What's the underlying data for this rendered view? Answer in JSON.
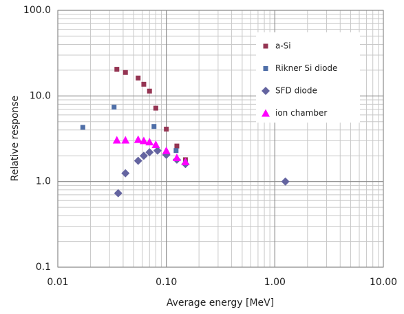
{
  "chart_data": {
    "type": "scatter",
    "xlabel": "Average energy [MeV]",
    "ylabel": "Relative response",
    "xscale": "log",
    "yscale": "log",
    "grid": true,
    "minor_grid": true,
    "legend": "upper right",
    "xlim": [
      0.01,
      10
    ],
    "ylim": [
      0.1,
      100
    ],
    "xticks": [
      0.01,
      {
        "value": 0.1,
        "label": "0.10"
      },
      {
        "value": 1,
        "label": "1.00"
      },
      {
        "value": 10,
        "label": "10.00"
      }
    ],
    "yticks": [
      {
        "value": 100,
        "label": "100.0"
      },
      {
        "value": 10,
        "label": "10.0"
      },
      {
        "value": 1,
        "label": "1.0"
      },
      0.1
    ],
    "series": [
      {
        "name": "a-Si",
        "color": "#953553",
        "marker": "square",
        "x": [
          0.035,
          0.042,
          0.055,
          0.062,
          0.07,
          0.08,
          0.1,
          0.125,
          0.15
        ],
        "values": [
          20.5,
          18.8,
          16.2,
          13.7,
          11.4,
          7.2,
          4.1,
          2.6,
          1.8
        ]
      },
      {
        "name": "Rikner Si diode",
        "color": "#4f6fa8",
        "marker": "square",
        "x": [
          0.017,
          0.033,
          0.077,
          0.123,
          0.15
        ],
        "values": [
          4.3,
          7.4,
          4.4,
          2.3,
          1.65
        ]
      },
      {
        "name": "SFD diode",
        "color": "#6464a0",
        "marker": "diamond",
        "x": [
          0.036,
          0.042,
          0.055,
          0.062,
          0.07,
          0.083,
          0.1,
          0.125,
          0.15,
          1.25
        ],
        "values": [
          0.73,
          1.25,
          1.75,
          2.0,
          2.2,
          2.3,
          2.05,
          1.8,
          1.6,
          1.0
        ]
      },
      {
        "name": "ion chamber",
        "color": "#ff00ff",
        "marker": "triangle",
        "x": [
          0.035,
          0.042,
          0.055,
          0.062,
          0.07,
          0.08,
          0.1,
          0.125,
          0.15
        ],
        "values": [
          3.05,
          3.05,
          3.1,
          3.0,
          2.9,
          2.7,
          2.3,
          1.9,
          1.7
        ]
      }
    ]
  }
}
